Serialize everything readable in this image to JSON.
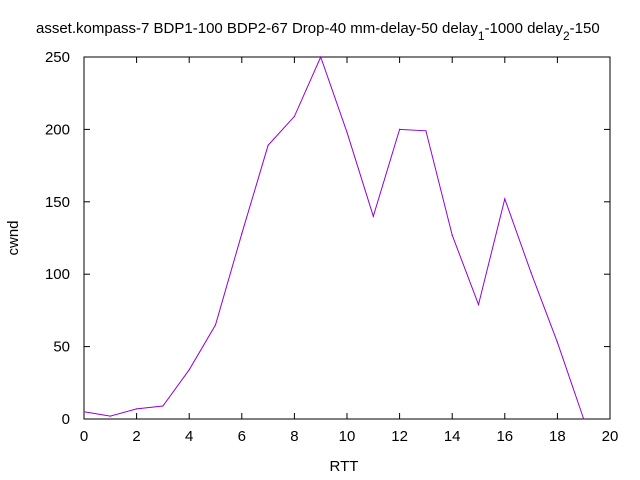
{
  "chart_data": {
    "type": "line",
    "title_parts": {
      "main": "asset.kompass-7 BDP1-100 BDP2-67 Drop-40 mm-delay-50 delay",
      "sub1": "1",
      "mid": "-1000 delay",
      "sub2": "2",
      "tail": "-150"
    },
    "xlabel": "RTT",
    "ylabel": "cwnd",
    "xlim": [
      0,
      20
    ],
    "ylim": [
      0,
      250
    ],
    "xticks": [
      "0",
      "2",
      "4",
      "6",
      "8",
      "10",
      "12",
      "14",
      "16",
      "18",
      "20"
    ],
    "yticks": [
      "0",
      "50",
      "100",
      "150",
      "200",
      "250"
    ],
    "grid": false,
    "color": "#9400d3",
    "series": [
      {
        "x": [
          0,
          1,
          2,
          3,
          4,
          5,
          6,
          7,
          8,
          9,
          10,
          11,
          12,
          13,
          14,
          15,
          16,
          17,
          18,
          19
        ],
        "y": [
          5,
          2,
          7,
          9,
          34,
          65,
          128,
          189,
          209,
          250,
          198,
          140,
          200,
          199,
          127,
          79,
          152,
          101,
          53,
          0
        ]
      }
    ]
  }
}
